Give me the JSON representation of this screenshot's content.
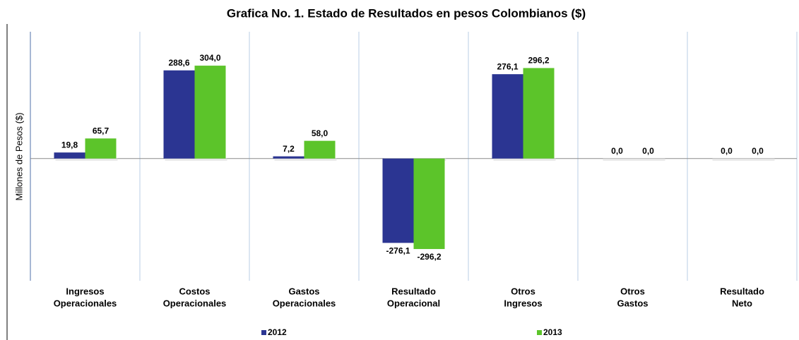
{
  "chart_data": {
    "type": "bar",
    "title": "Grafica No. 1. Estado de Resultados en pesos Colombianos ($)",
    "y_label": "Millones de Pesos ($)",
    "categories": [
      [
        "Ingresos",
        "Operacionales"
      ],
      [
        "Costos",
        "Operacionales"
      ],
      [
        "Gastos",
        "Operacionales"
      ],
      [
        "Resultado",
        "Operacional"
      ],
      [
        "Otros",
        "Ingresos"
      ],
      [
        "Otros",
        "Gastos"
      ],
      [
        "Resultado",
        "Neto"
      ]
    ],
    "series": [
      {
        "name": "2012",
        "color": "#2b3592",
        "values": [
          19.8,
          288.6,
          7.2,
          -276.1,
          276.1,
          0,
          0
        ],
        "value_labels": [
          "19,8",
          "288,6",
          "7,2",
          "-276,1",
          "276,1",
          "0,0",
          "0,0"
        ]
      },
      {
        "name": "2013",
        "color": "#5cc42a",
        "values": [
          65.7,
          304.0,
          58.0,
          -296.2,
          296.2,
          0,
          0
        ],
        "value_labels": [
          "65,7",
          "304,0",
          "58,0",
          "-296,2",
          "296,2",
          "0,0",
          "0,0"
        ]
      }
    ],
    "ylim": [
      -400,
      415
    ]
  }
}
